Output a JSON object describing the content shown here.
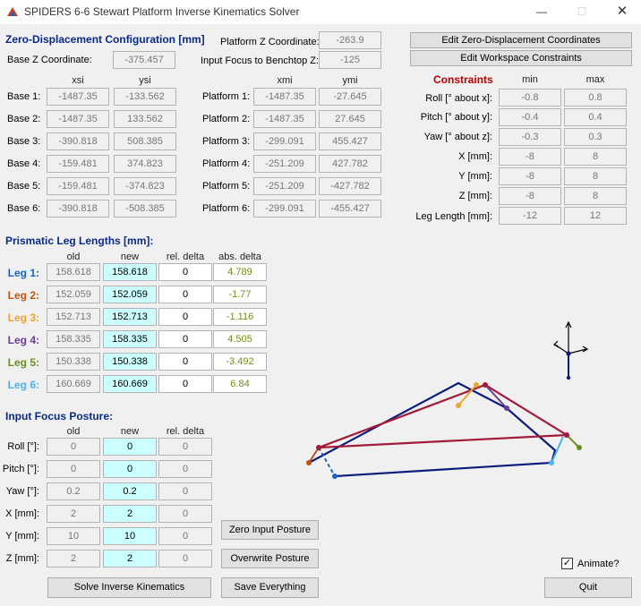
{
  "window": {
    "title": "SPIDERS 6-6 Stewart Platform Inverse Kinematics Solver"
  },
  "zero": {
    "heading": "Zero-Displacement Configuration  [mm]",
    "base_z_label": "Base Z Coordinate:",
    "base_z": "-375.457",
    "platform_z_label": "Platform Z Coordinate:",
    "platform_z": "-263.9",
    "input_focus_label": "Input Focus to Benchtop Z:",
    "input_focus": "-125",
    "col_xsi": "xsi",
    "col_ysi": "ysi",
    "col_xmi": "xmi",
    "col_ymi": "ymi",
    "base": [
      {
        "label": "Base 1:",
        "x": "-1487.35",
        "y": "-133.562"
      },
      {
        "label": "Base 2:",
        "x": "-1487.35",
        "y": "133.562"
      },
      {
        "label": "Base 3:",
        "x": "-390.818",
        "y": "508.385"
      },
      {
        "label": "Base 4:",
        "x": "-159.481",
        "y": "374.823"
      },
      {
        "label": "Base 5:",
        "x": "-159.481",
        "y": "-374.823"
      },
      {
        "label": "Base 6:",
        "x": "-390.818",
        "y": "-508.385"
      }
    ],
    "platform": [
      {
        "label": "Platform 1:",
        "x": "-1487.35",
        "y": "-27.645"
      },
      {
        "label": "Platform 2:",
        "x": "-1487.35",
        "y": "27.645"
      },
      {
        "label": "Platform 3:",
        "x": "-299.091",
        "y": "455.427"
      },
      {
        "label": "Platform 4:",
        "x": "-251.209",
        "y": "427.782"
      },
      {
        "label": "Platform 5:",
        "x": "-251.209",
        "y": "-427.782"
      },
      {
        "label": "Platform 6:",
        "x": "-299.091",
        "y": "-455.427"
      }
    ]
  },
  "buttons": {
    "edit_zero": "Edit Zero-Displacement Coordinates",
    "edit_ws": "Edit Workspace Constraints",
    "zero_posture": "Zero Input Posture",
    "overwrite": "Overwrite Posture",
    "solve": "Solve Inverse Kinematics",
    "save": "Save Everything",
    "quit": "Quit"
  },
  "constraints": {
    "heading": "Constraints",
    "col_min": "min",
    "col_max": "max",
    "rows": [
      {
        "label": "Roll [° about x]:",
        "min": "-0.8",
        "max": "0.8"
      },
      {
        "label": "Pitch [° about y]:",
        "min": "-0.4",
        "max": "0.4"
      },
      {
        "label": "Yaw [° about z]:",
        "min": "-0.3",
        "max": "0.3"
      },
      {
        "label": "X [mm]:",
        "min": "-8",
        "max": "8"
      },
      {
        "label": "Y [mm]:",
        "min": "-8",
        "max": "8"
      },
      {
        "label": "Z [mm]:",
        "min": "-8",
        "max": "8"
      },
      {
        "label": "Leg Length [mm]:",
        "min": "-12",
        "max": "12"
      }
    ]
  },
  "legs": {
    "heading": "Prismatic Leg Lengths [mm]:",
    "col_old": "old",
    "col_new": "new",
    "col_rel": "rel. delta",
    "col_abs": "abs. delta",
    "rows": [
      {
        "label": "Leg 1:",
        "color": "#1565c0",
        "old": "158.618",
        "new": "158.618",
        "rel": "0",
        "abs": "4.789"
      },
      {
        "label": "Leg 2:",
        "color": "#c0521a",
        "old": "152.059",
        "new": "152.059",
        "rel": "0",
        "abs": "-1.77"
      },
      {
        "label": "Leg 3:",
        "color": "#e8a531",
        "old": "152.713",
        "new": "152.713",
        "rel": "0",
        "abs": "-1.116"
      },
      {
        "label": "Leg 4:",
        "color": "#6a3d8f",
        "old": "158.335",
        "new": "158.335",
        "rel": "0",
        "abs": "4.505"
      },
      {
        "label": "Leg 5:",
        "color": "#6a8f1f",
        "old": "150.338",
        "new": "150.338",
        "rel": "0",
        "abs": "-3.492"
      },
      {
        "label": "Leg 6:",
        "color": "#4db3e6",
        "old": "160.669",
        "new": "160.669",
        "rel": "0",
        "abs": "6.84"
      }
    ]
  },
  "posture": {
    "heading": "Input Focus Posture:",
    "col_old": "old",
    "col_new": "new",
    "col_rel": "rel. delta",
    "rows": [
      {
        "label": "Roll [°]:",
        "old": "0",
        "new": "0",
        "rel": "0"
      },
      {
        "label": "Pitch [°]:",
        "old": "0",
        "new": "0",
        "rel": "0"
      },
      {
        "label": "Yaw [°]:",
        "old": "0.2",
        "new": "0.2",
        "rel": "0"
      },
      {
        "label": "X [mm]:",
        "old": "2",
        "new": "2",
        "rel": "0"
      },
      {
        "label": "Y [mm]:",
        "old": "10",
        "new": "10",
        "rel": "0"
      },
      {
        "label": "Z [mm]:",
        "old": "2",
        "new": "2",
        "rel": "0"
      }
    ]
  },
  "animate": {
    "label": "Animate?",
    "checked": true
  },
  "colors": {
    "base": "#0d1b7a",
    "platform": "#a01c3a",
    "accent": "#0a2a8a",
    "constraints": "#c00000"
  }
}
